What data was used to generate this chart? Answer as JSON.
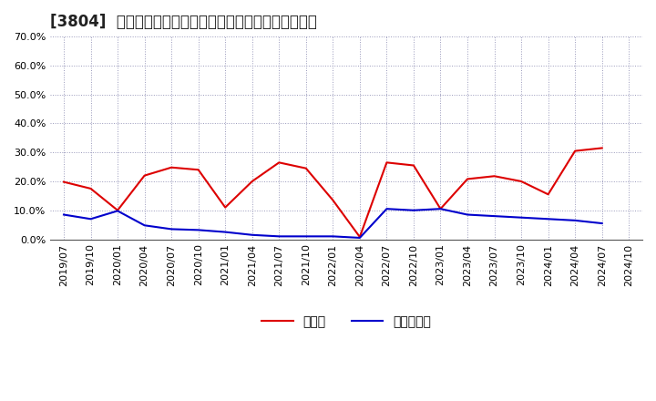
{
  "title": "[3804]  現預金、有利子負債の総資産に対する比率の推移",
  "x_labels": [
    "2019/07",
    "2019/10",
    "2020/01",
    "2020/04",
    "2020/07",
    "2020/10",
    "2021/01",
    "2021/04",
    "2021/07",
    "2021/10",
    "2022/01",
    "2022/04",
    "2022/07",
    "2022/10",
    "2023/01",
    "2023/04",
    "2023/07",
    "2023/10",
    "2024/01",
    "2024/04",
    "2024/07",
    "2024/10"
  ],
  "cash": [
    19.8,
    17.5,
    10.0,
    22.0,
    24.8,
    24.0,
    11.0,
    20.0,
    26.5,
    24.5,
    13.5,
    0.8,
    26.5,
    25.5,
    10.5,
    20.8,
    21.8,
    20.0,
    15.5,
    30.5,
    31.5,
    null
  ],
  "debt": [
    8.5,
    7.0,
    9.8,
    4.8,
    3.5,
    3.2,
    2.5,
    1.5,
    1.0,
    1.0,
    1.0,
    0.5,
    10.5,
    10.0,
    10.5,
    8.5,
    8.0,
    7.5,
    7.0,
    6.5,
    5.5,
    null
  ],
  "ylim": [
    0,
    70
  ],
  "yticks": [
    0,
    10,
    20,
    30,
    40,
    50,
    60,
    70
  ],
  "cash_color": "#dd0000",
  "debt_color": "#0000cc",
  "grid_color": "#9999bb",
  "bg_color": "#ffffff",
  "legend_cash": "現預金",
  "legend_debt": "有利子負債",
  "title_fontsize": 12,
  "tick_fontsize": 8,
  "legend_fontsize": 10
}
